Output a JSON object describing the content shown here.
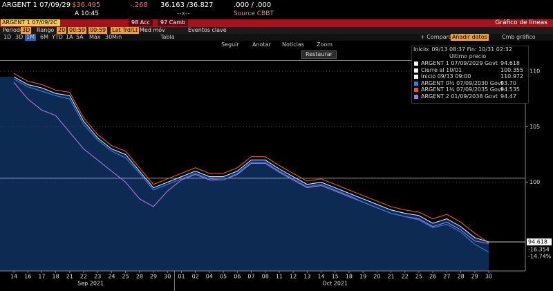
{
  "header": {
    "ticker": "ARGENT 1 07/09/29",
    "price": "$36.495",
    "change": "-.268",
    "bid_ask": "36.163 /36.827",
    "yield": ".000 / .000",
    "time": "A 10:45",
    "flag": "--x--",
    "source": "Source CBBT"
  },
  "command_bar": {
    "security": "ARGENT 1 07/09/2C",
    "acc": "98 Acc",
    "camb": "97 Camb",
    "title": "Gráfico de líneas"
  },
  "settings_row": [
    "Periodo",
    "3D",
    "Rango",
    "20",
    "00:59",
    "00:59",
    "Lat Trd/Lt",
    "Med móv",
    "Eventos clave"
  ],
  "range_row": [
    "1D",
    "3D",
    "1M",
    "6M",
    "YTD",
    "1A",
    "5A",
    "Máx",
    "30",
    "Min",
    "Tabla"
  ],
  "tools": [
    "Seguir",
    "Anotar",
    "Noticias",
    "Zoom"
  ],
  "restore": "Restaurar",
  "right_tools": [
    "+ Comparar",
    "Añadir datos",
    "Cmb gráfico"
  ],
  "chart_data": {
    "type": "line",
    "range_text": "Inicio: 09/13 08:37 Fin: 10/31 02:32",
    "legend_header": "Último precio",
    "categories": [
      "14",
      "16",
      "17",
      "18",
      "21",
      "22",
      "23",
      "24",
      "25",
      "28",
      "29",
      "30",
      "01",
      "02",
      "04",
      "05",
      "06",
      "07",
      "08",
      "11",
      "12",
      "13",
      "14",
      "15",
      "18",
      "19",
      "20",
      "21",
      "22",
      "25",
      "26",
      "27",
      "28",
      "29",
      "30"
    ],
    "months": [
      {
        "label": "Sep 2021",
        "from": 0,
        "to": 11
      },
      {
        "label": "Oct 2021",
        "from": 12,
        "to": 34
      }
    ],
    "series": [
      {
        "name": "ARGENT 1 07/09/2029 Govt",
        "color": "#d4e2f7",
        "area": "#0c2a52",
        "values": [
          109.5,
          108.8,
          108.5,
          108.0,
          107.8,
          105.5,
          104.0,
          103.0,
          102.5,
          101.0,
          99.5,
          100.0,
          100.5,
          101.0,
          100.5,
          100.5,
          101.0,
          102.0,
          102.0,
          101.2,
          100.5,
          99.8,
          100.0,
          99.5,
          99.0,
          98.5,
          98.0,
          97.5,
          97.2,
          97.0,
          96.3,
          96.7,
          96.0,
          95.0,
          94.618
        ]
      },
      {
        "name": "ARGENT 0½ 07/09/2030 Govt",
        "color": "#2f7fe6",
        "values": [
          109.3,
          108.6,
          108.2,
          107.8,
          107.5,
          105.2,
          103.8,
          102.8,
          102.2,
          100.8,
          99.3,
          99.8,
          100.3,
          100.8,
          100.3,
          100.2,
          100.8,
          101.8,
          101.8,
          101.0,
          100.3,
          99.6,
          99.8,
          99.3,
          98.8,
          98.2,
          97.7,
          97.2,
          96.9,
          96.6,
          95.9,
          96.2,
          95.5,
          94.4,
          93.7
        ],
        "value_labels": [
          "",
          "",
          "",
          "",
          "",
          "",
          "",
          "",
          "",
          "",
          "",
          "",
          "",
          "",
          "",
          "",
          "",
          "",
          "",
          "",
          "",
          "",
          "",
          "",
          "",
          "",
          "",
          "",
          "",
          "",
          "",
          "",
          "",
          "",
          "93.70"
        ]
      },
      {
        "name": "ARGENT 1⅛ 07/09/2035 Govt",
        "color": "#e5582b",
        "values": [
          109.8,
          109.1,
          108.8,
          108.3,
          108.1,
          105.8,
          104.3,
          103.3,
          102.8,
          101.3,
          99.8,
          100.3,
          100.8,
          101.3,
          100.8,
          100.8,
          101.3,
          102.3,
          102.3,
          101.5,
          100.8,
          100.1,
          100.3,
          99.8,
          99.3,
          98.8,
          98.3,
          97.8,
          97.5,
          97.3,
          96.7,
          97.1,
          96.4,
          95.4,
          94.535
        ]
      },
      {
        "name": "ARGENT 2 01/09/2038 Govt",
        "color": "#a874e6",
        "values": [
          109.0,
          107.5,
          106.5,
          106.0,
          104.5,
          103.0,
          102.0,
          101.0,
          100.0,
          98.5,
          97.8,
          99.2,
          100.2,
          100.7,
          100.2,
          100.2,
          100.7,
          101.7,
          101.7,
          100.9,
          100.2,
          99.5,
          99.7,
          99.2,
          98.7,
          98.2,
          97.7,
          97.2,
          96.9,
          96.7,
          96.0,
          96.4,
          95.7,
          94.7,
          94.47
        ]
      }
    ],
    "reference_lines": [
      {
        "name": "Cierre al 10/01",
        "value": 100.355,
        "color": "#ffffff"
      },
      {
        "name": "Inicio 09/13 09:00",
        "value": 110.972,
        "color": "#ffffff"
      }
    ],
    "side_labels": [
      "-16.354",
      "-14.74%"
    ],
    "ylim": [
      92,
      111
    ],
    "yticks": [
      100,
      105,
      110
    ]
  }
}
